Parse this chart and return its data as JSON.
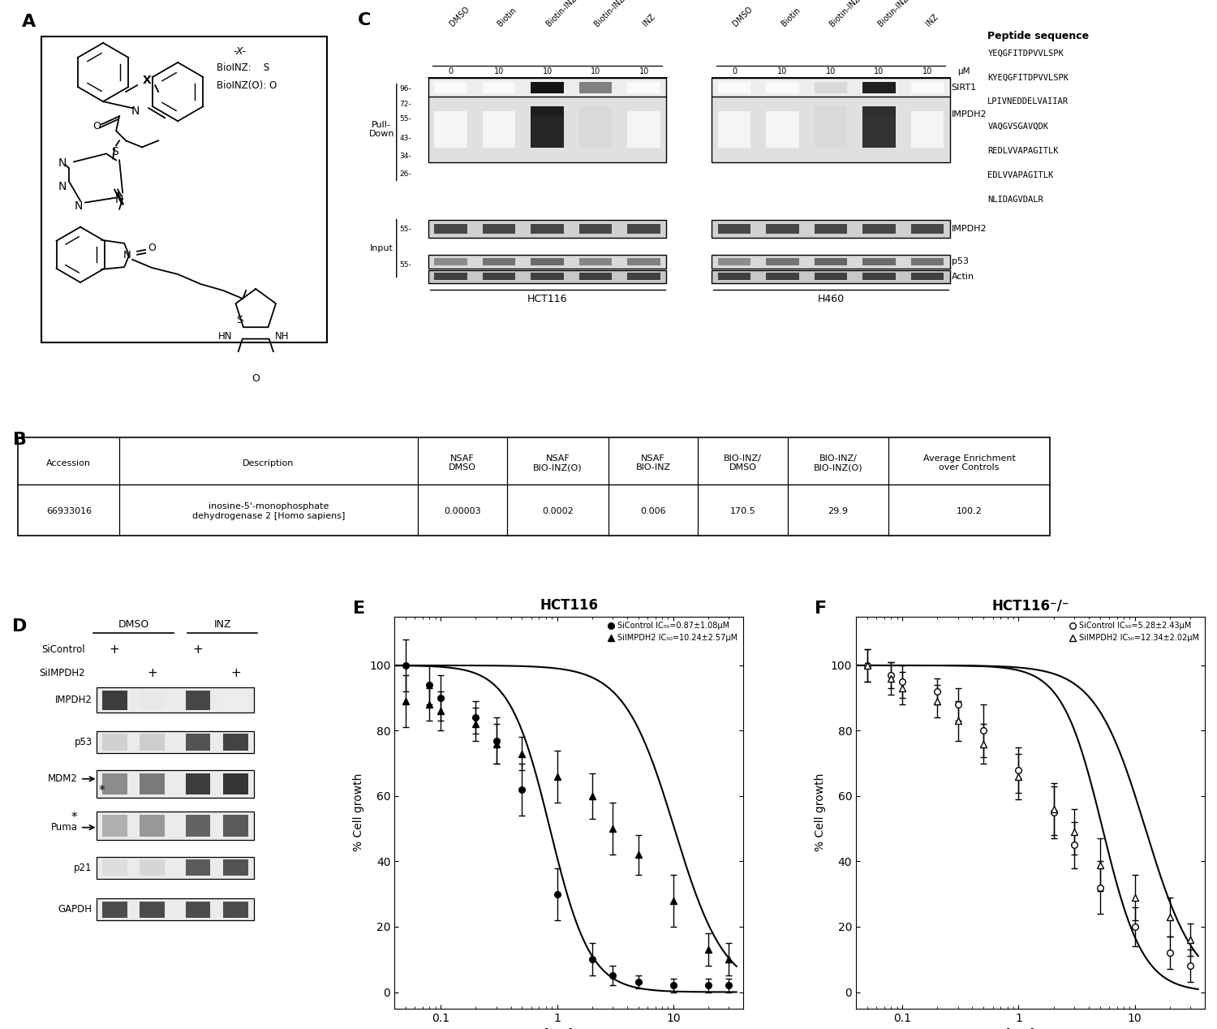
{
  "panel_A": {
    "label": "A",
    "x_label": "-X-",
    "bioinz_s": "BioINZ:    S",
    "bioinz_o": "BioINZ(O): O"
  },
  "panel_B": {
    "label": "B",
    "table_headers": [
      "Accession",
      "Description",
      "NSAF\nDMSO",
      "NSAF\nBIO-INZ(O)",
      "NSAF\nBIO-INZ",
      "BIO-INZ/\nDMSO",
      "BIO-INZ/\nBIO-INZ(O)",
      "Average Enrichment\nover Controls"
    ],
    "table_data": [
      [
        "66933016",
        "inosine-5'-monophosphate\ndehydrogenase 2 [Homo sapiens]",
        "0.00003",
        "0.0002",
        "0.006",
        "170.5",
        "29.9",
        "100.2"
      ]
    ]
  },
  "panel_C": {
    "label": "C",
    "col_labels_hct116": [
      "DMSO",
      "Biotin",
      "Biotin-INZ",
      "Biotin-INZ(O)",
      "INZ"
    ],
    "col_labels_h460": [
      "DMSO",
      "Biotin",
      "Biotin-INZ(O)",
      "Biotin-INZ",
      "INZ"
    ],
    "conc_hct116": [
      "0",
      "10",
      "10",
      "10",
      "10"
    ],
    "conc_h460": [
      "0",
      "10",
      "10",
      "10",
      "10"
    ],
    "mw_markers_pd": [
      "96-",
      "72-",
      "55-",
      "43-",
      "34-",
      "26-"
    ],
    "mw_markers_in": [
      "55-",
      "55-"
    ],
    "peptide_header": "Peptide sequence",
    "peptide_sequences": [
      "YEQGFITDPVVLSPK",
      "KYEQGFITDPVVLSPK",
      "LPIVNEDDELVAIIAR",
      "VAQGVSGAVQDK",
      "REDLVVAPAGITLK",
      "EDLVVAPAGITLK",
      "NLIDAGVDALR"
    ]
  },
  "panel_D": {
    "label": "D",
    "dmso_label": "DMSO",
    "inz_label": "INZ",
    "sicontrol": "SiControl",
    "siimpdh2": "SiIMPDH2",
    "bands": [
      "IMPDH2",
      "p53",
      "MDM2",
      "Puma",
      "p21",
      "GAPDH"
    ]
  },
  "panel_E": {
    "label": "E",
    "title": "HCT116",
    "xlabel": "[INZ] μM",
    "ylabel": "% Cell growth",
    "xmin": 0.04,
    "xmax": 40,
    "ymin": -5,
    "ymax": 115,
    "sicontrol_label": "SiControl IC₅₀=0.87±1.08μM",
    "siimpdh2_label": "SiIMPDH2 IC₅₀=10.24±2.57μM",
    "sicontrol_x": [
      0.05,
      0.08,
      0.1,
      0.2,
      0.3,
      0.5,
      1.0,
      2.0,
      3.0,
      5.0,
      10.0,
      20.0,
      30.0
    ],
    "sicontrol_y": [
      100,
      94,
      90,
      84,
      77,
      62,
      30,
      10,
      5,
      3,
      2,
      2,
      2
    ],
    "sicontrol_err": [
      8,
      6,
      7,
      5,
      7,
      8,
      8,
      5,
      3,
      2,
      2,
      2,
      2
    ],
    "siimpdh2_x": [
      0.05,
      0.08,
      0.1,
      0.2,
      0.3,
      0.5,
      1.0,
      2.0,
      3.0,
      5.0,
      10.0,
      20.0,
      30.0
    ],
    "siimpdh2_y": [
      89,
      88,
      86,
      82,
      76,
      73,
      66,
      60,
      50,
      42,
      28,
      13,
      10
    ],
    "siimpdh2_err": [
      8,
      5,
      6,
      5,
      6,
      5,
      8,
      7,
      8,
      6,
      8,
      5,
      5
    ],
    "sicontrol_ic50": 0.87,
    "siimpdh2_ic50": 10.24
  },
  "panel_F": {
    "label": "F",
    "title": "HCT116⁻/⁻",
    "xlabel": "[INZ] μM",
    "ylabel": "% Cell growth",
    "xmin": 0.04,
    "xmax": 40,
    "ymin": -5,
    "ymax": 115,
    "sicontrol_label": "SiControl IC₅₀=5.28±2.43μM",
    "siimpdh2_label": "SiIMPDH2 IC₅₀=12.34±2.02μM",
    "sicontrol_x": [
      0.05,
      0.08,
      0.1,
      0.2,
      0.3,
      0.5,
      1.0,
      2.0,
      3.0,
      5.0,
      10.0,
      20.0,
      30.0
    ],
    "sicontrol_y": [
      100,
      97,
      95,
      92,
      88,
      80,
      68,
      55,
      45,
      32,
      20,
      12,
      8
    ],
    "sicontrol_err": [
      5,
      4,
      5,
      4,
      5,
      8,
      7,
      8,
      7,
      8,
      6,
      5,
      5
    ],
    "siimpdh2_x": [
      0.05,
      0.08,
      0.1,
      0.2,
      0.3,
      0.5,
      1.0,
      2.0,
      3.0,
      5.0,
      10.0,
      20.0,
      30.0
    ],
    "siimpdh2_y": [
      100,
      96,
      93,
      89,
      83,
      76,
      66,
      56,
      49,
      39,
      29,
      23,
      16
    ],
    "siimpdh2_err": [
      5,
      5,
      5,
      5,
      6,
      6,
      7,
      8,
      7,
      8,
      7,
      6,
      5
    ],
    "sicontrol_ic50": 5.28,
    "siimpdh2_ic50": 12.34
  }
}
